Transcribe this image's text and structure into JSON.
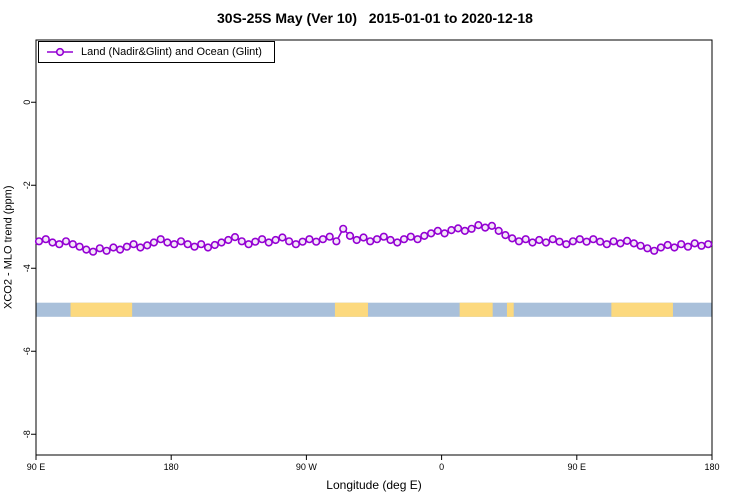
{
  "chart_data": {
    "type": "line",
    "title": "30S-25S May (Ver 10)   2015-01-01 to 2020-12-18",
    "xlabel": "Longitude (deg E)",
    "ylabel": "XCO2 - MLO trend (ppm)",
    "xlim": [
      90,
      540
    ],
    "ylim": [
      -8.5,
      1.5
    ],
    "grid": false,
    "xticks": {
      "positions": [
        90,
        180,
        270,
        360,
        450,
        540
      ],
      "labels": [
        "90 E",
        "180",
        "90 W",
        "0",
        "90 E",
        "180"
      ]
    },
    "yticks": {
      "positions": [
        0,
        -2,
        -4,
        -6,
        -8
      ],
      "labels": [
        "0",
        "-2",
        "-4",
        "-6",
        "-8"
      ]
    },
    "legend": {
      "position": "top-left",
      "entries": [
        {
          "label": "Land (Nadir&Glint) and Ocean (Glint)",
          "color": "#9400d3",
          "marker": "circle-line"
        }
      ]
    },
    "band": {
      "description": "land/ocean indicator band",
      "y_center": -5,
      "half_height": 0.17,
      "ocean_color": "#a9c0da",
      "land_color": "#fcd97e",
      "land_segments": [
        [
          113,
          154
        ],
        [
          289,
          311
        ],
        [
          372,
          394
        ],
        [
          403.5,
          408
        ],
        [
          473,
          514
        ]
      ]
    },
    "series": [
      {
        "name": "Land (Nadir&Glint) and Ocean (Glint)",
        "color": "#9400d3",
        "marker_fill": "#f3e6f8",
        "x": [
          92,
          96.5,
          101,
          105.5,
          110,
          114.5,
          119,
          123.5,
          128,
          132.5,
          137,
          141.5,
          146,
          150.5,
          155,
          159.5,
          164,
          168.5,
          173,
          177.5,
          182,
          186.5,
          191,
          195.5,
          200,
          204.5,
          209,
          213.5,
          218,
          222.5,
          227,
          231.5,
          236,
          240.5,
          245,
          249.5,
          254,
          258.5,
          263,
          267.5,
          272,
          276.5,
          281,
          285.5,
          290,
          294.5,
          299,
          303.5,
          308,
          312.5,
          317,
          321.5,
          326,
          330.5,
          335,
          339.5,
          344,
          348.5,
          353,
          357.5,
          362,
          366.5,
          371,
          375.5,
          380,
          384.5,
          389,
          393.5,
          398,
          402.5,
          407,
          411.5,
          416,
          420.5,
          425,
          429.5,
          434,
          438.5,
          443,
          447.5,
          452,
          456.5,
          461,
          465.5,
          470,
          474.5,
          479,
          483.5,
          488,
          492.5,
          497,
          501.5,
          506,
          510.5,
          515,
          519.5,
          524,
          528.5,
          533,
          537.5
        ],
        "y": [
          -3.35,
          -3.3,
          -3.38,
          -3.42,
          -3.35,
          -3.42,
          -3.48,
          -3.55,
          -3.6,
          -3.52,
          -3.58,
          -3.5,
          -3.55,
          -3.48,
          -3.42,
          -3.5,
          -3.45,
          -3.38,
          -3.3,
          -3.38,
          -3.42,
          -3.35,
          -3.42,
          -3.48,
          -3.42,
          -3.5,
          -3.44,
          -3.38,
          -3.32,
          -3.25,
          -3.35,
          -3.42,
          -3.36,
          -3.3,
          -3.38,
          -3.32,
          -3.26,
          -3.35,
          -3.42,
          -3.36,
          -3.3,
          -3.36,
          -3.3,
          -3.24,
          -3.35,
          -3.05,
          -3.22,
          -3.32,
          -3.26,
          -3.35,
          -3.3,
          -3.24,
          -3.32,
          -3.38,
          -3.3,
          -3.24,
          -3.3,
          -3.22,
          -3.16,
          -3.1,
          -3.16,
          -3.08,
          -3.04,
          -3.1,
          -3.05,
          -2.96,
          -3.02,
          -2.98,
          -3.1,
          -3.2,
          -3.28,
          -3.35,
          -3.3,
          -3.38,
          -3.32,
          -3.38,
          -3.3,
          -3.36,
          -3.42,
          -3.35,
          -3.3,
          -3.36,
          -3.3,
          -3.36,
          -3.42,
          -3.35,
          -3.4,
          -3.34,
          -3.4,
          -3.46,
          -3.52,
          -3.58,
          -3.5,
          -3.44,
          -3.5,
          -3.42,
          -3.48,
          -3.4,
          -3.46,
          -3.42
        ]
      }
    ]
  }
}
